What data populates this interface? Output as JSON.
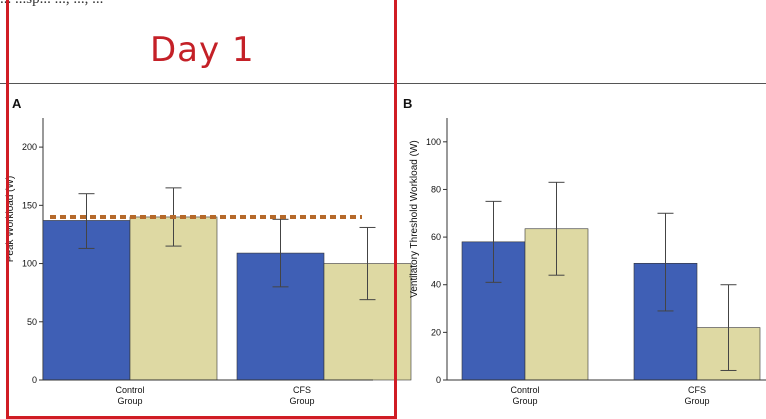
{
  "header": {
    "top_text": "... ...sp... ..., ..., ..."
  },
  "annotation": {
    "day_title": "Day 1",
    "box_color": "#d01c24"
  },
  "colors": {
    "blue": "#3f5fb5",
    "tan": "#ded9a3",
    "dotted": "#b5692a",
    "axis": "#333333"
  },
  "chart_data": [
    {
      "panel": "A",
      "type": "bar",
      "ylabel": "Peak Workload (W)",
      "ylim": [
        0,
        225
      ],
      "yticks": [
        0,
        50,
        100,
        150,
        200
      ],
      "categories": [
        "Control\nGroup",
        "CFS\nGroup"
      ],
      "series": [
        {
          "values": [
            137,
            109
          ],
          "errors": [
            [
              113,
              160
            ],
            [
              80,
              138
            ]
          ],
          "color": "#3f5fb5"
        },
        {
          "values": [
            140,
            100
          ],
          "errors": [
            [
              115,
              165
            ],
            [
              69,
              131
            ]
          ],
          "color": "#ded9a3"
        }
      ],
      "reference_line": {
        "y": 140,
        "style": "dotted",
        "color": "#b5692a"
      }
    },
    {
      "panel": "B",
      "type": "bar",
      "ylabel": "Ventilatory Threshold Workload (W)",
      "ylim": [
        0,
        110
      ],
      "yticks": [
        0,
        20,
        40,
        60,
        80,
        100
      ],
      "categories": [
        "Control\nGroup",
        "CFS\nGroup"
      ],
      "series": [
        {
          "values": [
            58,
            49
          ],
          "errors": [
            [
              41,
              75
            ],
            [
              29,
              70
            ]
          ],
          "color": "#3f5fb5"
        },
        {
          "values": [
            63.5,
            22
          ],
          "errors": [
            [
              44,
              83
            ],
            [
              4,
              40
            ]
          ],
          "color": "#ded9a3"
        }
      ]
    }
  ]
}
